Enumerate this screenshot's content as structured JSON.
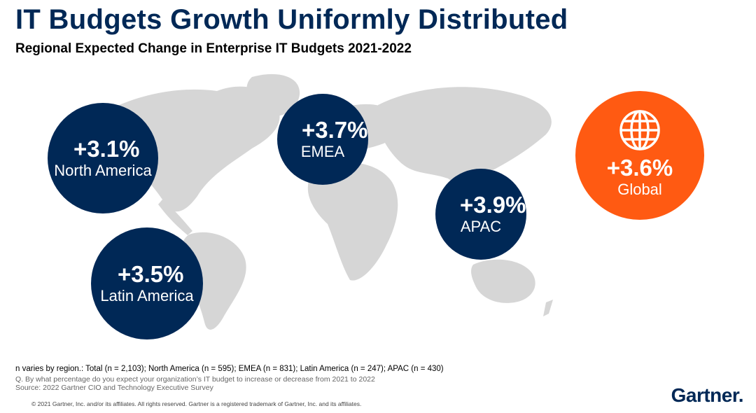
{
  "title": "IT Budgets Growth Uniformly Distributed",
  "subtitle": "Regional Expected Change in Enterprise IT Budgets 2021-2022",
  "regions": {
    "north_america": {
      "value": "+3.1%",
      "label": "North America",
      "color": "#002856"
    },
    "emea": {
      "value": "+3.7%",
      "label": "EMEA",
      "color": "#002856"
    },
    "apac": {
      "value": "+3.9%",
      "label": "APAC",
      "color": "#002856"
    },
    "latin_america": {
      "value": "+3.5%",
      "label": "Latin America",
      "color": "#002856"
    },
    "global": {
      "value": "+3.6%",
      "label": "Global",
      "color": "#ff5a12",
      "icon": "globe-icon"
    }
  },
  "footnotes": {
    "sample": "n varies by region.: Total (n = 2,103); North America (n = 595); EMEA (n = 831); Latin America (n = 247); APAC (n = 430)",
    "question": "Q. By what percentage do you expect your organization’s IT budget to increase or decrease from 2021 to 2022",
    "source": "Source: 2022 Gartner CIO and Technology Executive Survey"
  },
  "copyright": "© 2021 Gartner, Inc. and/or its affiliates. All rights reserved. Gartner is a registered trademark of Gartner, Inc. and its affiliates.",
  "logo": "Gartner."
}
